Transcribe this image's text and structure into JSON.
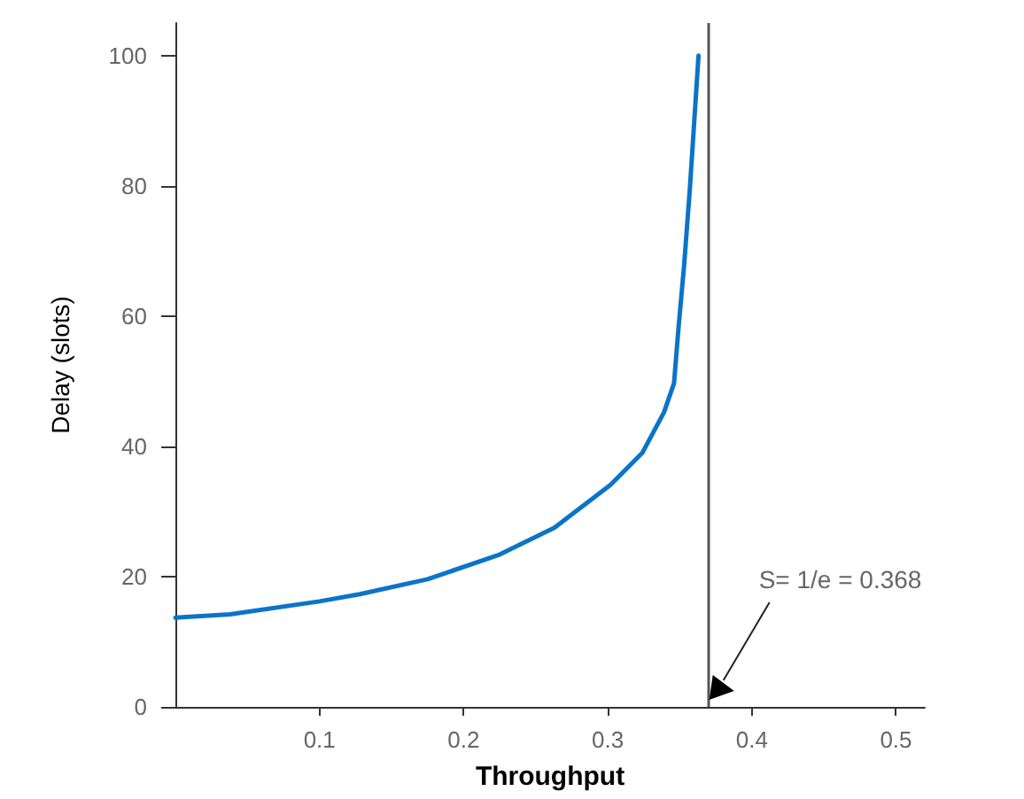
{
  "chart_data": {
    "type": "line",
    "xlabel": "Throughput",
    "ylabel": "Delay (slots)",
    "xlim": [
      0,
      0.52
    ],
    "xticks": [
      0.1,
      0.2,
      0.3,
      0.4,
      0.5
    ],
    "ylim": [
      0,
      105
    ],
    "yticks": [
      0,
      20,
      40,
      60,
      80,
      100
    ],
    "grid": false,
    "marker": "none",
    "line_style": "solid",
    "series": [
      {
        "color": "#0b74c8",
        "x": [
          0,
          0.038,
          0.1,
          0.128,
          0.175,
          0.224,
          0.263,
          0.302,
          0.324,
          0.339,
          0.346,
          0.349,
          0.353,
          0.357,
          0.361,
          0.363
        ],
        "values": [
          13.7,
          14.2,
          16.2,
          17.3,
          19.6,
          23.3,
          27.5,
          34.1,
          39,
          45.2,
          49.7,
          57.9,
          67.8,
          79.6,
          93.2,
          100
        ]
      }
    ],
    "ref_lines": [
      {
        "axis": "x",
        "value": 0.368,
        "label": "S= 1/e = 0.368",
        "color": "#555555"
      }
    ]
  }
}
